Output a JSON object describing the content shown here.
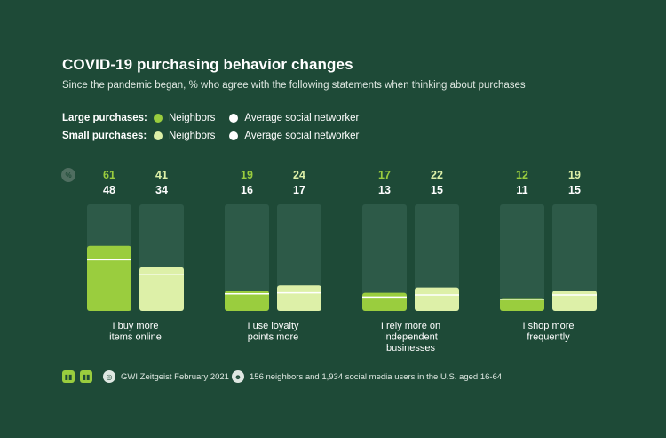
{
  "header": {
    "title": "COVID-19 purchasing behavior changes",
    "subtitle": "Since the pandemic began, % who agree with the following statements when thinking about purchases"
  },
  "legend": {
    "large_label": "Large purchases:",
    "small_label": "Small purchases:",
    "neighbors": "Neighbors",
    "average": "Average social networker"
  },
  "pct_icon": "%",
  "colors": {
    "background": "#1e4a37",
    "track": "#2d5a48",
    "large_neighbors": "#9acd3e",
    "small_neighbors": "#ddf0a8",
    "average_marker": "#ffffff",
    "neighbors_value_text_large": "#9acd3e",
    "neighbors_value_text_small": "#ddf0a8"
  },
  "footer": {
    "source": "GWI Zeitgeist February 2021",
    "sample": "156 neighbors and 1,934 social media users in the U.S. aged 16-64"
  },
  "chart_data": {
    "type": "bar",
    "categories": [
      [
        "I buy more",
        "items online"
      ],
      [
        "I use loyalty",
        "points more"
      ],
      [
        "I rely more on",
        "independent",
        "businesses"
      ],
      [
        "I shop more",
        "frequently"
      ]
    ],
    "ylim": [
      0,
      100
    ],
    "series": [
      {
        "name": "Large purchases: Neighbors",
        "values": [
          61,
          19,
          17,
          12
        ]
      },
      {
        "name": "Large purchases: Average social networker",
        "values": [
          48,
          16,
          13,
          11
        ]
      },
      {
        "name": "Small purchases: Neighbors",
        "values": [
          41,
          24,
          22,
          19
        ]
      },
      {
        "name": "Small purchases: Average social networker",
        "values": [
          34,
          17,
          15,
          15
        ]
      }
    ]
  }
}
